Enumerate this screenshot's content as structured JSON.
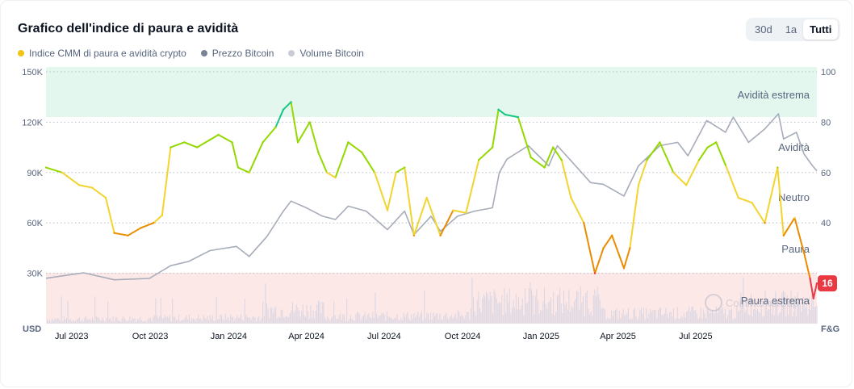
{
  "title": "Grafico dell'indice di paura e avidità",
  "range_buttons": [
    "30d",
    "1a",
    "Tutti"
  ],
  "active_range": "Tutti",
  "legend": [
    {
      "label": "Indice CMM di paura e avidità crypto",
      "color": "#F0C419"
    },
    {
      "label": "Prezzo Bitcoin",
      "color": "#7a8394"
    },
    {
      "label": "Volume Bitcoin",
      "color": "#c9cbd6"
    }
  ],
  "watermark": "CoinMarketCap",
  "chart_data": {
    "type": "line",
    "x_labels": [
      "Jul 2023",
      "Oct 2023",
      "Jan 2024",
      "Apr 2024",
      "Jul 2024",
      "Oct 2024",
      "Jan 2025",
      "Apr 2025",
      "Jul 2025"
    ],
    "x_start": "2023-06-01",
    "x_end": "2025-11-20",
    "left_axis": {
      "unit": "USD",
      "ticks": [
        "150K",
        "120K",
        "90K",
        "60K",
        "30K"
      ],
      "values": [
        150000,
        120000,
        90000,
        60000,
        30000
      ],
      "ylim": [
        0,
        150000
      ]
    },
    "right_axis": {
      "unit": "F&G",
      "ticks": [
        "100",
        "80",
        "60",
        "40"
      ],
      "values": [
        100,
        80,
        60,
        40
      ],
      "ylim": [
        0,
        100
      ]
    },
    "zones": [
      {
        "label": "Avidità estrema",
        "from": 80,
        "to": 100,
        "color": "#e3f7ee"
      },
      {
        "label": "Avidità",
        "value": 70
      },
      {
        "label": "Neutro",
        "value": 50
      },
      {
        "label": "Paura",
        "value": 30
      },
      {
        "label": "Paura estrema",
        "from": 0,
        "to": 20,
        "color": "#fde8e8"
      }
    ],
    "current_value": 16,
    "fear_greed": [
      [
        "2023-06-01",
        62
      ],
      [
        "2023-06-20",
        60
      ],
      [
        "2023-07-10",
        55
      ],
      [
        "2023-07-25",
        54
      ],
      [
        "2023-08-10",
        50
      ],
      [
        "2023-08-20",
        36
      ],
      [
        "2023-09-05",
        35
      ],
      [
        "2023-09-20",
        38
      ],
      [
        "2023-10-05",
        40
      ],
      [
        "2023-10-15",
        43
      ],
      [
        "2023-10-25",
        70
      ],
      [
        "2023-11-10",
        72
      ],
      [
        "2023-11-25",
        70
      ],
      [
        "2023-12-10",
        73
      ],
      [
        "2023-12-20",
        75
      ],
      [
        "2024-01-05",
        72
      ],
      [
        "2024-01-12",
        62
      ],
      [
        "2024-01-25",
        60
      ],
      [
        "2024-02-10",
        72
      ],
      [
        "2024-02-25",
        78
      ],
      [
        "2024-03-05",
        85
      ],
      [
        "2024-03-14",
        88
      ],
      [
        "2024-03-22",
        72
      ],
      [
        "2024-04-05",
        80
      ],
      [
        "2024-04-15",
        68
      ],
      [
        "2024-04-25",
        60
      ],
      [
        "2024-05-05",
        58
      ],
      [
        "2024-05-20",
        72
      ],
      [
        "2024-06-05",
        68
      ],
      [
        "2024-06-20",
        60
      ],
      [
        "2024-07-05",
        45
      ],
      [
        "2024-07-15",
        60
      ],
      [
        "2024-07-25",
        62
      ],
      [
        "2024-08-05",
        35
      ],
      [
        "2024-08-20",
        50
      ],
      [
        "2024-09-05",
        35
      ],
      [
        "2024-09-20",
        45
      ],
      [
        "2024-10-05",
        44
      ],
      [
        "2024-10-20",
        65
      ],
      [
        "2024-11-05",
        70
      ],
      [
        "2024-11-12",
        85
      ],
      [
        "2024-11-20",
        83
      ],
      [
        "2024-12-05",
        82
      ],
      [
        "2024-12-20",
        66
      ],
      [
        "2025-01-05",
        62
      ],
      [
        "2025-01-15",
        70
      ],
      [
        "2025-01-25",
        65
      ],
      [
        "2025-02-05",
        50
      ],
      [
        "2025-02-20",
        40
      ],
      [
        "2025-03-05",
        20
      ],
      [
        "2025-03-15",
        30
      ],
      [
        "2025-03-25",
        35
      ],
      [
        "2025-04-08",
        22
      ],
      [
        "2025-04-15",
        30
      ],
      [
        "2025-04-25",
        55
      ],
      [
        "2025-05-05",
        65
      ],
      [
        "2025-05-20",
        72
      ],
      [
        "2025-06-05",
        60
      ],
      [
        "2025-06-20",
        55
      ],
      [
        "2025-07-05",
        65
      ],
      [
        "2025-07-15",
        70
      ],
      [
        "2025-07-25",
        72
      ],
      [
        "2025-08-05",
        63
      ],
      [
        "2025-08-20",
        50
      ],
      [
        "2025-09-05",
        48
      ],
      [
        "2025-09-20",
        40
      ],
      [
        "2025-10-05",
        62
      ],
      [
        "2025-10-12",
        35
      ],
      [
        "2025-10-25",
        42
      ],
      [
        "2025-11-05",
        28
      ],
      [
        "2025-11-12",
        18
      ],
      [
        "2025-11-16",
        10
      ],
      [
        "2025-11-20",
        16
      ]
    ],
    "btc_price": [
      [
        "2023-06-01",
        27000
      ],
      [
        "2023-07-15",
        30300
      ],
      [
        "2023-08-20",
        26100
      ],
      [
        "2023-09-30",
        26900
      ],
      [
        "2023-10-25",
        34500
      ],
      [
        "2023-11-15",
        37000
      ],
      [
        "2023-12-10",
        43500
      ],
      [
        "2024-01-10",
        46000
      ],
      [
        "2024-01-25",
        40000
      ],
      [
        "2024-02-15",
        52000
      ],
      [
        "2024-03-05",
        67000
      ],
      [
        "2024-03-14",
        73000
      ],
      [
        "2024-04-01",
        69000
      ],
      [
        "2024-04-20",
        64000
      ],
      [
        "2024-05-05",
        62000
      ],
      [
        "2024-05-20",
        70000
      ],
      [
        "2024-06-10",
        67000
      ],
      [
        "2024-07-05",
        56000
      ],
      [
        "2024-07-25",
        67000
      ],
      [
        "2024-08-05",
        53000
      ],
      [
        "2024-08-25",
        64000
      ],
      [
        "2024-09-05",
        55000
      ],
      [
        "2024-09-25",
        64000
      ],
      [
        "2024-10-15",
        67000
      ],
      [
        "2024-11-05",
        69000
      ],
      [
        "2024-11-13",
        90000
      ],
      [
        "2024-11-22",
        98000
      ],
      [
        "2024-12-17",
        106000
      ],
      [
        "2025-01-10",
        94000
      ],
      [
        "2025-01-20",
        106000
      ],
      [
        "2025-02-05",
        97000
      ],
      [
        "2025-02-28",
        84000
      ],
      [
        "2025-03-15",
        83000
      ],
      [
        "2025-04-08",
        76000
      ],
      [
        "2025-04-25",
        94000
      ],
      [
        "2025-05-20",
        106000
      ],
      [
        "2025-06-10",
        108000
      ],
      [
        "2025-06-22",
        100000
      ],
      [
        "2025-07-14",
        121000
      ],
      [
        "2025-08-05",
        114000
      ],
      [
        "2025-08-14",
        123000
      ],
      [
        "2025-09-01",
        108000
      ],
      [
        "2025-09-20",
        116000
      ],
      [
        "2025-10-06",
        125000
      ],
      [
        "2025-10-12",
        110000
      ],
      [
        "2025-10-27",
        114000
      ],
      [
        "2025-11-05",
        101000
      ],
      [
        "2025-11-15",
        94000
      ],
      [
        "2025-11-20",
        91000
      ]
    ]
  }
}
